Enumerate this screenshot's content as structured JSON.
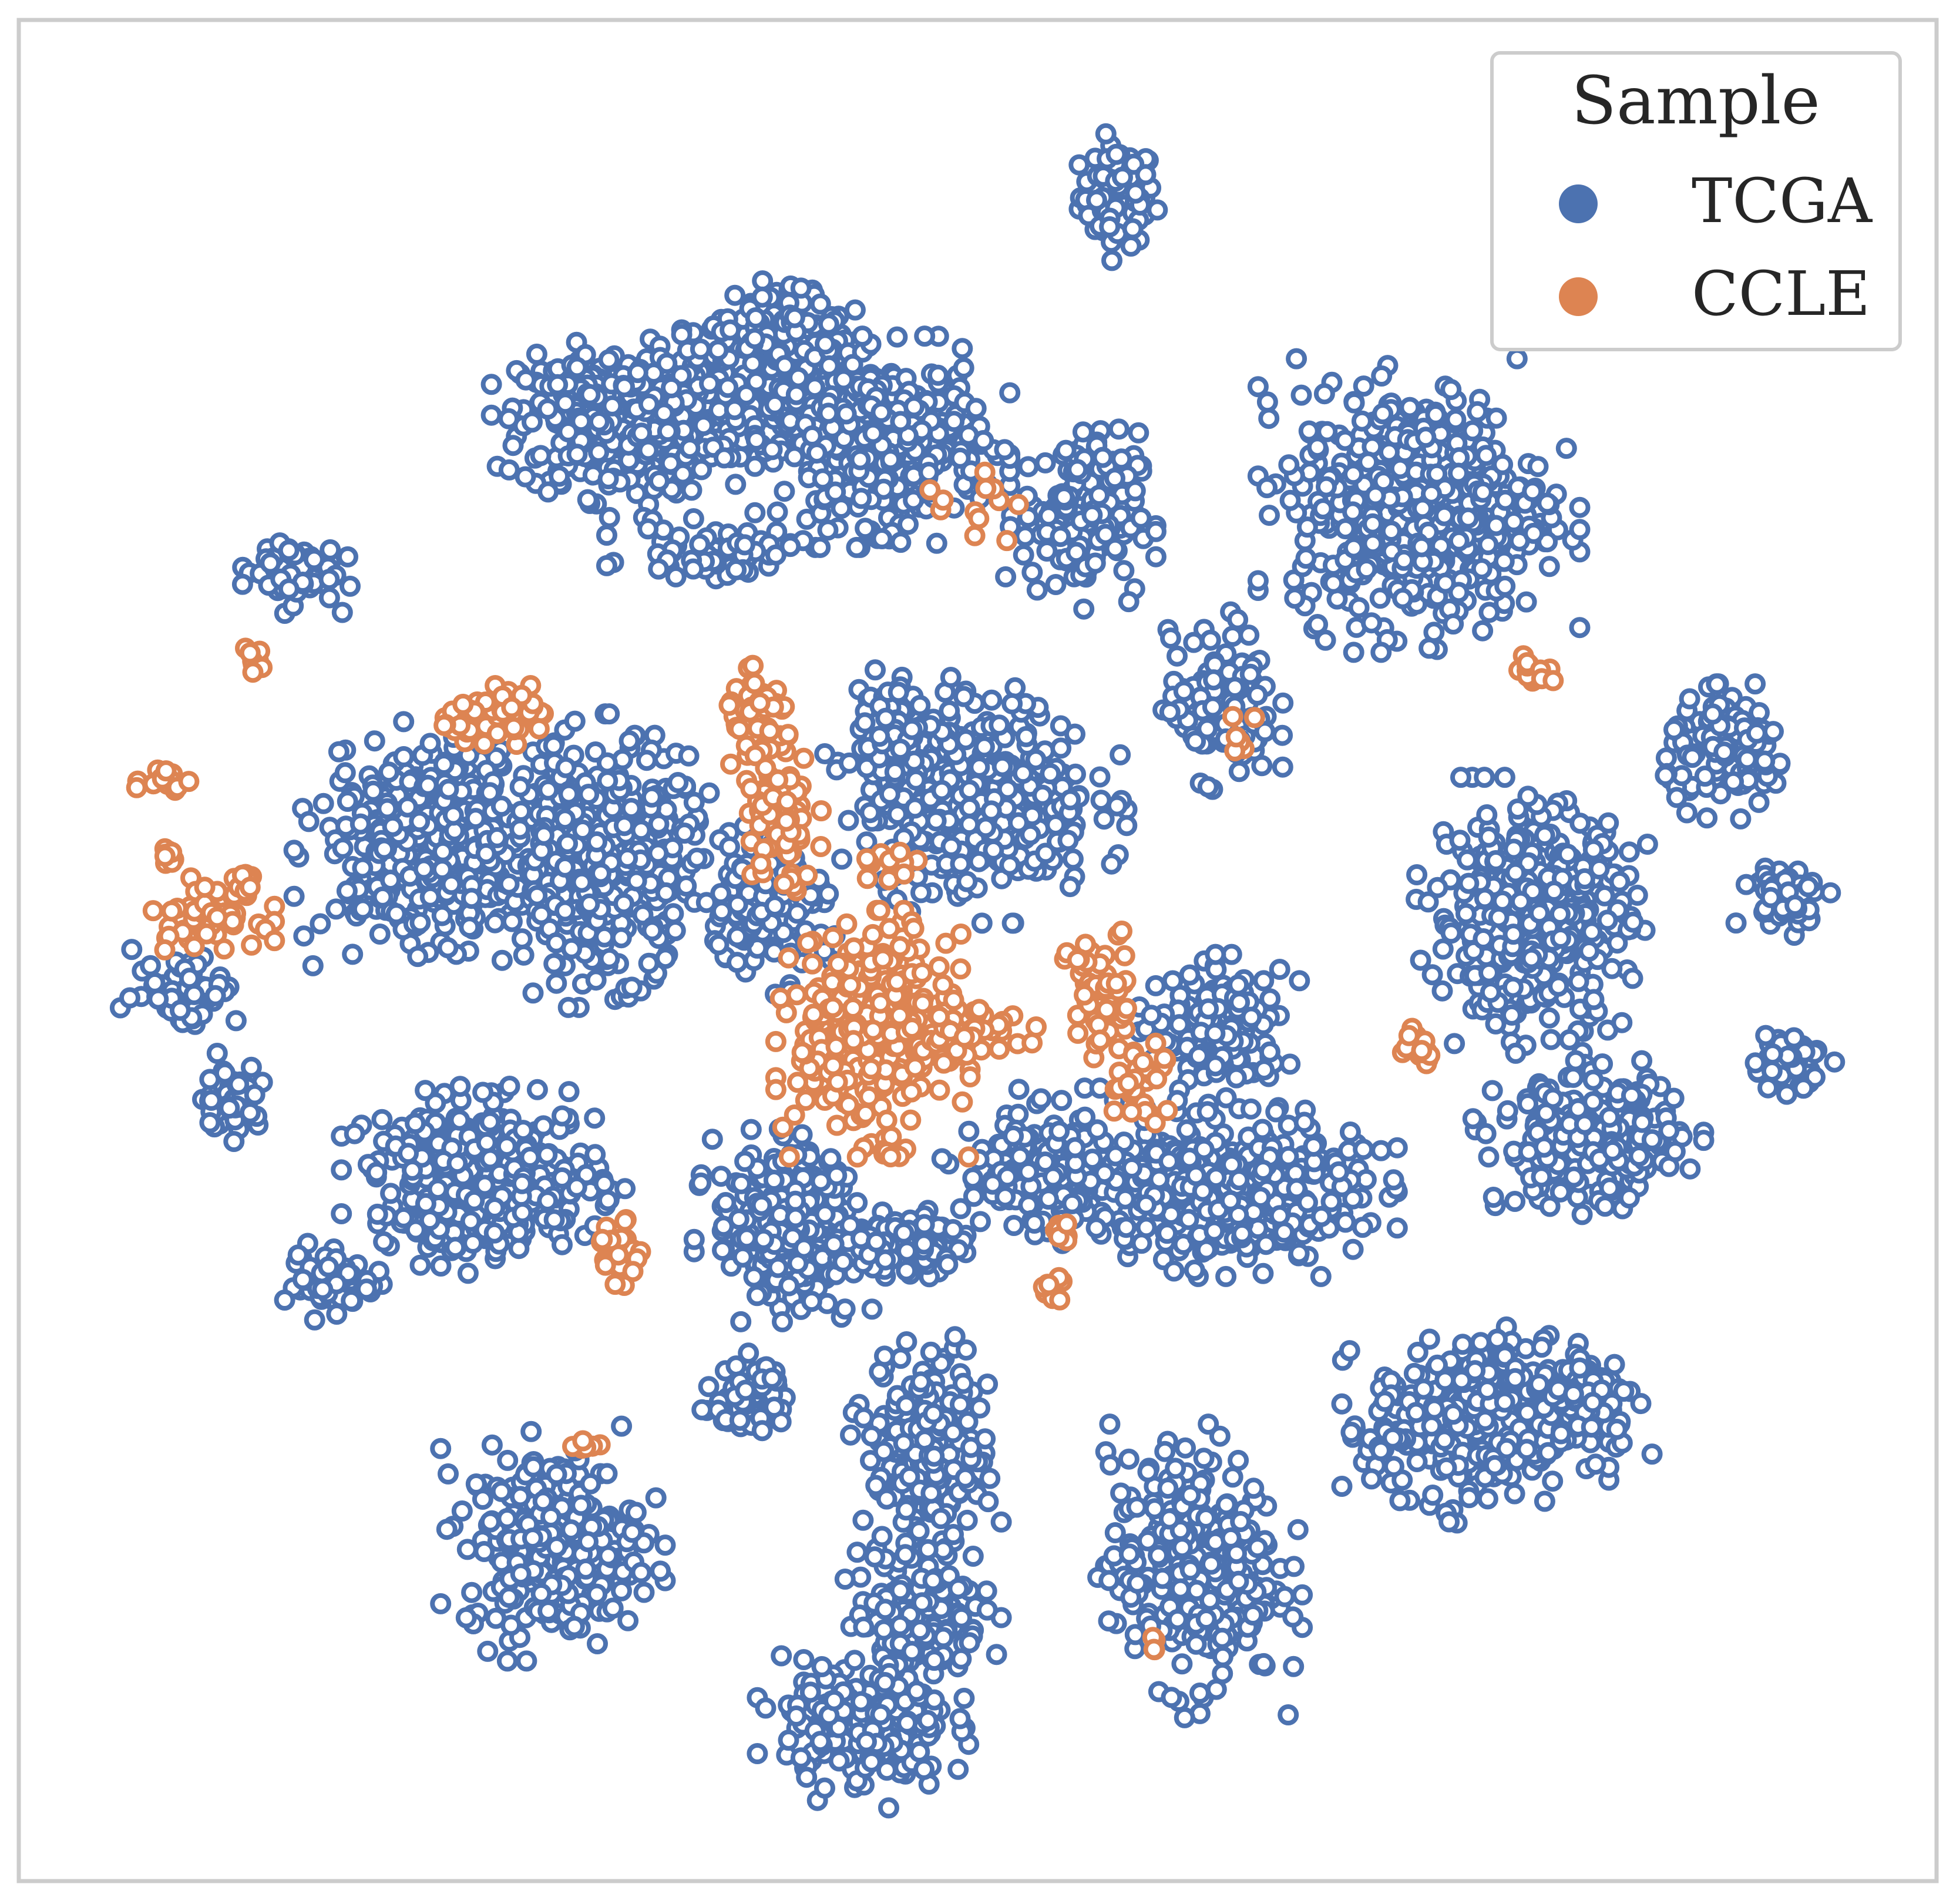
{
  "chart_data": {
    "type": "scatter",
    "title": "",
    "xlabel": "",
    "ylabel": "",
    "axes_visible": false,
    "xlim": [
      0,
      100
    ],
    "ylim": [
      0,
      100
    ],
    "grid": false,
    "marker": "hollow-circle",
    "legend": {
      "title": "Sample",
      "placement": "top-right",
      "entries": [
        {
          "label": "TCGA",
          "color": "#4c72b0"
        },
        {
          "label": "CCLE",
          "color": "#dd8452"
        }
      ]
    },
    "series": [
      {
        "name": "TCGA",
        "color": "#4c72b0",
        "clusters": [
          {
            "cx": 57.5,
            "cy": 91.5,
            "sx": 1.6,
            "sy": 2.2,
            "n": 90
          },
          {
            "cx": 39.5,
            "cy": 82.0,
            "sx": 3.2,
            "sy": 3.0,
            "n": 440
          },
          {
            "cx": 31.0,
            "cy": 79.0,
            "sx": 4.2,
            "sy": 3.2,
            "n": 420
          },
          {
            "cx": 45.0,
            "cy": 78.0,
            "sx": 4.2,
            "sy": 3.6,
            "n": 420
          },
          {
            "cx": 36.0,
            "cy": 72.0,
            "sx": 3.5,
            "sy": 1.1,
            "n": 60
          },
          {
            "cx": 55.5,
            "cy": 74.0,
            "sx": 2.5,
            "sy": 3.6,
            "n": 170
          },
          {
            "cx": 73.5,
            "cy": 74.5,
            "sx": 5.3,
            "sy": 5.0,
            "n": 560
          },
          {
            "cx": 13.5,
            "cy": 71.0,
            "sx": 2.0,
            "sy": 1.5,
            "n": 70
          },
          {
            "cx": 63.0,
            "cy": 63.5,
            "sx": 2.2,
            "sy": 3.2,
            "n": 130
          },
          {
            "cx": 50.0,
            "cy": 58.5,
            "sx": 5.0,
            "sy": 4.3,
            "n": 360
          },
          {
            "cx": 45.5,
            "cy": 62.0,
            "sx": 1.4,
            "sy": 3.0,
            "n": 60
          },
          {
            "cx": 90.0,
            "cy": 61.0,
            "sx": 2.7,
            "sy": 2.3,
            "n": 120
          },
          {
            "cx": 21.0,
            "cy": 56.0,
            "sx": 4.5,
            "sy": 4.2,
            "n": 420
          },
          {
            "cx": 30.0,
            "cy": 55.0,
            "sx": 4.3,
            "sy": 5.0,
            "n": 440
          },
          {
            "cx": 39.0,
            "cy": 52.5,
            "sx": 2.5,
            "sy": 3.0,
            "n": 120
          },
          {
            "cx": 79.5,
            "cy": 52.0,
            "sx": 4.1,
            "sy": 4.7,
            "n": 400
          },
          {
            "cx": 93.0,
            "cy": 53.0,
            "sx": 1.8,
            "sy": 1.3,
            "n": 60
          },
          {
            "cx": 8.0,
            "cy": 48.0,
            "sx": 2.2,
            "sy": 1.6,
            "n": 60
          },
          {
            "cx": 10.5,
            "cy": 42.0,
            "sx": 1.2,
            "sy": 1.5,
            "n": 50
          },
          {
            "cx": 63.0,
            "cy": 45.5,
            "sx": 2.7,
            "sy": 2.7,
            "n": 160
          },
          {
            "cx": 93.0,
            "cy": 44.0,
            "sx": 1.6,
            "sy": 1.2,
            "n": 60
          },
          {
            "cx": 82.5,
            "cy": 39.5,
            "sx": 3.8,
            "sy": 2.8,
            "n": 260
          },
          {
            "cx": 24.0,
            "cy": 37.5,
            "sx": 4.8,
            "sy": 3.2,
            "n": 400
          },
          {
            "cx": 63.0,
            "cy": 37.0,
            "sx": 5.8,
            "sy": 3.0,
            "n": 440
          },
          {
            "cx": 53.0,
            "cy": 38.0,
            "sx": 3.0,
            "sy": 2.8,
            "n": 150
          },
          {
            "cx": 40.0,
            "cy": 35.0,
            "sx": 3.1,
            "sy": 3.3,
            "n": 260
          },
          {
            "cx": 46.0,
            "cy": 34.0,
            "sx": 2.5,
            "sy": 1.4,
            "n": 90
          },
          {
            "cx": 16.0,
            "cy": 32.0,
            "sx": 2.1,
            "sy": 1.4,
            "n": 60
          },
          {
            "cx": 38.0,
            "cy": 25.5,
            "sx": 1.6,
            "sy": 1.6,
            "n": 60
          },
          {
            "cx": 47.5,
            "cy": 23.0,
            "sx": 2.6,
            "sy": 4.0,
            "n": 200
          },
          {
            "cx": 76.5,
            "cy": 24.0,
            "sx": 4.4,
            "sy": 3.6,
            "n": 340
          },
          {
            "cx": 82.5,
            "cy": 25.5,
            "sx": 2.1,
            "sy": 2.3,
            "n": 90
          },
          {
            "cx": 27.5,
            "cy": 17.5,
            "sx": 3.7,
            "sy": 4.0,
            "n": 300
          },
          {
            "cx": 61.5,
            "cy": 16.0,
            "sx": 3.6,
            "sy": 5.0,
            "n": 320
          },
          {
            "cx": 47.0,
            "cy": 14.0,
            "sx": 2.7,
            "sy": 3.5,
            "n": 160
          },
          {
            "cx": 44.0,
            "cy": 7.5,
            "sx": 3.5,
            "sy": 2.8,
            "n": 200
          }
        ]
      },
      {
        "name": "CCLE",
        "color": "#dd8452",
        "clusters": [
          {
            "cx": 25.0,
            "cy": 63.0,
            "sx": 2.6,
            "sy": 1.0,
            "n": 60
          },
          {
            "cx": 38.5,
            "cy": 62.5,
            "sx": 1.5,
            "sy": 2.0,
            "n": 60
          },
          {
            "cx": 39.5,
            "cy": 57.0,
            "sx": 1.6,
            "sy": 3.0,
            "n": 80
          },
          {
            "cx": 11.5,
            "cy": 66.0,
            "sx": 0.5,
            "sy": 0.5,
            "n": 8
          },
          {
            "cx": 7.0,
            "cy": 59.5,
            "sx": 1.0,
            "sy": 0.7,
            "n": 14
          },
          {
            "cx": 7.0,
            "cy": 55.5,
            "sx": 0.5,
            "sy": 0.6,
            "n": 10
          },
          {
            "cx": 9.0,
            "cy": 52.0,
            "sx": 2.3,
            "sy": 1.3,
            "n": 50
          },
          {
            "cx": 11.0,
            "cy": 53.5,
            "sx": 0.6,
            "sy": 0.6,
            "n": 10
          },
          {
            "cx": 44.5,
            "cy": 45.5,
            "sx": 3.2,
            "sy": 4.2,
            "n": 380
          },
          {
            "cx": 56.5,
            "cy": 47.0,
            "sx": 1.3,
            "sy": 3.5,
            "n": 60
          },
          {
            "cx": 59.0,
            "cy": 43.0,
            "sx": 1.4,
            "sy": 1.6,
            "n": 30
          },
          {
            "cx": 49.5,
            "cy": 45.5,
            "sx": 2.3,
            "sy": 1.2,
            "n": 40
          },
          {
            "cx": 45.5,
            "cy": 54.5,
            "sx": 1.0,
            "sy": 0.7,
            "n": 16
          },
          {
            "cx": 31.0,
            "cy": 33.5,
            "sx": 0.9,
            "sy": 1.3,
            "n": 30
          },
          {
            "cx": 54.0,
            "cy": 31.5,
            "sx": 0.6,
            "sy": 0.5,
            "n": 10
          },
          {
            "cx": 54.5,
            "cy": 34.5,
            "sx": 0.5,
            "sy": 0.5,
            "n": 8
          },
          {
            "cx": 73.5,
            "cy": 45.0,
            "sx": 0.8,
            "sy": 0.8,
            "n": 20
          },
          {
            "cx": 79.5,
            "cy": 65.5,
            "sx": 0.8,
            "sy": 0.7,
            "n": 14
          },
          {
            "cx": 29.5,
            "cy": 23.0,
            "sx": 0.6,
            "sy": 0.4,
            "n": 6
          },
          {
            "cx": 59.5,
            "cy": 12.0,
            "sx": 0.4,
            "sy": 0.3,
            "n": 4
          },
          {
            "cx": 50.0,
            "cy": 74.5,
            "sx": 2.5,
            "sy": 2.5,
            "n": 12
          },
          {
            "cx": 45.5,
            "cy": 39.0,
            "sx": 0.5,
            "sy": 0.7,
            "n": 8
          },
          {
            "cx": 64.0,
            "cy": 62.0,
            "sx": 0.8,
            "sy": 1.0,
            "n": 6
          }
        ]
      }
    ]
  }
}
